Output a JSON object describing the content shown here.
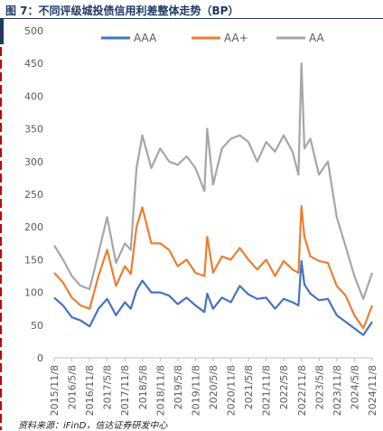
{
  "header": {
    "title": "图 7：不同评级城投债信用利差整体走势（BP）"
  },
  "footer": {
    "source": "资料来源：iFinD，信达证券研发中心"
  },
  "chart_data": {
    "type": "line",
    "title": "图 7：不同评级城投债信用利差整体走势（BP）",
    "xlabel": "",
    "ylabel": "",
    "ylim": [
      0,
      500
    ],
    "yticks": [
      0,
      50,
      100,
      150,
      200,
      250,
      300,
      350,
      400,
      450,
      500
    ],
    "xlim": [
      "2015-11-08",
      "2024-11-08"
    ],
    "xtick_labels": [
      "2015/11/8",
      "2016/5/8",
      "2016/11/8",
      "2017/5/8",
      "2017/11/8",
      "2018/5/8",
      "2018/11/8",
      "2019/5/8",
      "2019/11/8",
      "2020/5/8",
      "2020/11/8",
      "2021/5/8",
      "2021/11/8",
      "2022/5/8",
      "2022/11/8",
      "2023/5/8",
      "2023/11/8",
      "2024/5/8",
      "2024/11/8"
    ],
    "grid": false,
    "legend_position": "top",
    "x": [
      "2015-11-08",
      "2016-02-08",
      "2016-05-08",
      "2016-08-08",
      "2016-11-08",
      "2017-02-08",
      "2017-05-08",
      "2017-08-08",
      "2017-11-08",
      "2018-01-08",
      "2018-03-08",
      "2018-05-08",
      "2018-08-08",
      "2018-11-08",
      "2019-02-08",
      "2019-05-08",
      "2019-08-08",
      "2019-11-08",
      "2020-02-08",
      "2020-03-08",
      "2020-05-08",
      "2020-08-08",
      "2020-11-08",
      "2021-02-08",
      "2021-05-08",
      "2021-08-08",
      "2021-11-08",
      "2022-02-08",
      "2022-05-08",
      "2022-08-08",
      "2022-10-08",
      "2022-11-08",
      "2022-12-08",
      "2023-02-08",
      "2023-05-08",
      "2023-08-08",
      "2023-11-08",
      "2024-02-08",
      "2024-05-08",
      "2024-08-08",
      "2024-11-08"
    ],
    "series": [
      {
        "name": "AAA",
        "color": "#4472c4",
        "values": [
          92,
          80,
          62,
          57,
          48,
          75,
          90,
          65,
          85,
          75,
          103,
          118,
          100,
          100,
          95,
          82,
          92,
          80,
          70,
          98,
          75,
          92,
          85,
          110,
          97,
          90,
          92,
          75,
          90,
          85,
          80,
          148,
          112,
          98,
          88,
          90,
          65,
          55,
          45,
          35,
          55
        ]
      },
      {
        "name": "AA+",
        "color": "#ed7d31",
        "values": [
          130,
          115,
          92,
          80,
          75,
          125,
          165,
          110,
          140,
          128,
          200,
          230,
          175,
          175,
          165,
          140,
          150,
          130,
          125,
          185,
          130,
          155,
          150,
          168,
          150,
          135,
          150,
          125,
          148,
          135,
          130,
          232,
          185,
          155,
          148,
          145,
          110,
          95,
          65,
          45,
          80
        ]
      },
      {
        "name": "AA",
        "color": "#a6a6a6",
        "values": [
          172,
          150,
          125,
          110,
          105,
          160,
          215,
          145,
          175,
          165,
          290,
          340,
          290,
          320,
          300,
          295,
          308,
          290,
          255,
          350,
          265,
          320,
          335,
          340,
          330,
          300,
          330,
          315,
          340,
          315,
          280,
          450,
          320,
          335,
          280,
          300,
          215,
          170,
          125,
          90,
          130
        ]
      }
    ]
  }
}
